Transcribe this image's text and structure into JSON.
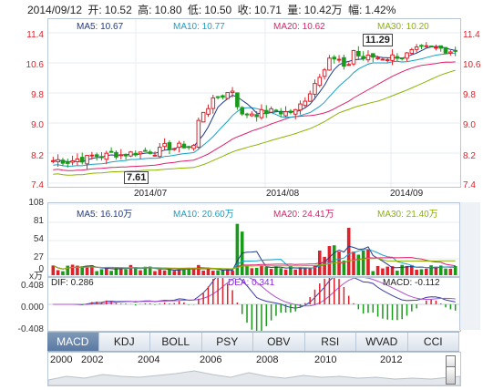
{
  "header": {
    "date": "2014/09/12",
    "open_label": "开:",
    "open": "10.52",
    "high_label": "高:",
    "high": "10.80",
    "low_label": "低:",
    "low": "10.50",
    "close_label": "收:",
    "close": "10.71",
    "volume_label": "量:",
    "volume": "10.42万",
    "change_label": "幅:",
    "change": "1.42%"
  },
  "price_panel": {
    "ma5": "MA5: 10.67",
    "ma10": "MA10: 10.77",
    "ma20": "MA20: 10.62",
    "ma30": "MA30: 10.20",
    "y_ticks": [
      "11.4",
      "10.6",
      "9.8",
      "9.0",
      "8.2",
      "7.4"
    ],
    "x_ticks": [
      "2014/07",
      "2014/08",
      "2014/09"
    ],
    "max_tag": "11.29",
    "min_tag": "7.61",
    "colors": {
      "ma5": "#1e3a8a",
      "ma10": "#16a0c8",
      "ma20": "#e0206a",
      "ma30": "#8bb400",
      "up": "#e0202a",
      "down": "#1a9a1a"
    }
  },
  "volume_panel": {
    "ma5": "MA5: 16.10万",
    "ma10": "MA10: 20.60万",
    "ma20": "MA20: 24.41万",
    "ma30": "MA30: 21.40万",
    "y_ticks": [
      "108",
      "81",
      "54",
      "27",
      "0"
    ]
  },
  "macd_panel": {
    "unit": "x万",
    "dif": "DIF: 0.286",
    "dea": "DEA: 0.341",
    "macd": "MACD: -0.112",
    "y_ticks": [
      "0.408",
      "0.000",
      "-0.408"
    ]
  },
  "tabs": [
    "MACD",
    "KDJ",
    "BOLL",
    "PSY",
    "OBV",
    "RSI",
    "WVAD",
    "CCI"
  ],
  "active_tab": "MACD",
  "timeline": {
    "years": [
      "2000",
      "2002",
      "2004",
      "2006",
      "2008",
      "2010",
      "2012"
    ]
  }
}
